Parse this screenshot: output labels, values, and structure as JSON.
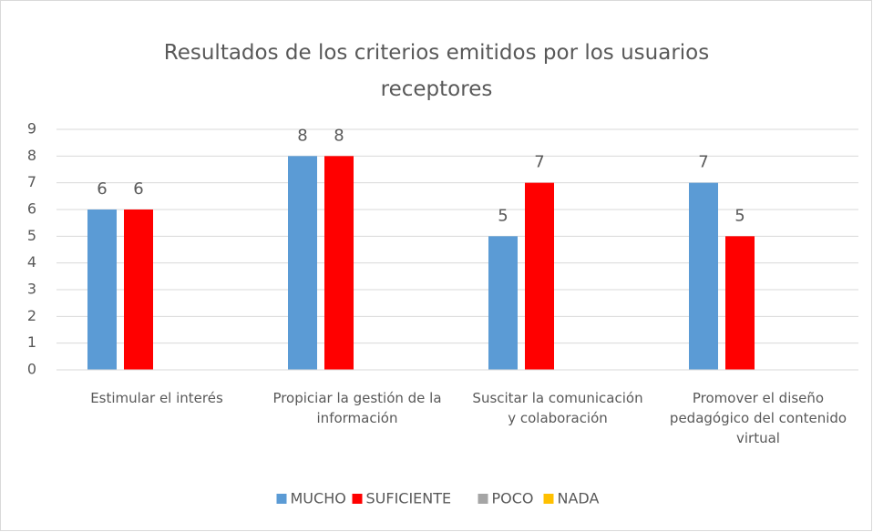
{
  "chart_data": {
    "type": "bar",
    "title": "Resultados de los criterios emitidos por los usuarios receptores",
    "categories": [
      "Estimular el interés",
      "Propiciar la gestión de la información",
      "Suscitar la comunicación y colaboración",
      "Promover el diseño pedagógico del contenido virtual"
    ],
    "series": [
      {
        "name": "MUCHO",
        "color": "#5b9bd5",
        "values": [
          6,
          8,
          5,
          7
        ]
      },
      {
        "name": "SUFICIENTE",
        "color": "#ff0000",
        "values": [
          6,
          8,
          7,
          5
        ]
      },
      {
        "name": "POCO",
        "color": "#a5a5a5",
        "values": [
          null,
          null,
          null,
          null
        ]
      },
      {
        "name": "NADA",
        "color": "#ffc000",
        "values": [
          null,
          null,
          null,
          null
        ]
      }
    ],
    "ylim": [
      0,
      9
    ],
    "yticks": [
      0,
      1,
      2,
      3,
      4,
      5,
      6,
      7,
      8,
      9
    ],
    "grid": true,
    "legend": "bottom"
  }
}
